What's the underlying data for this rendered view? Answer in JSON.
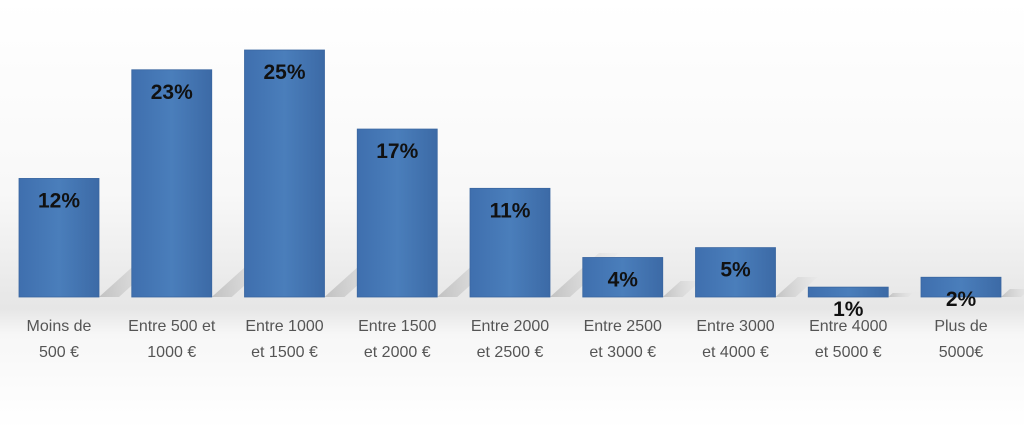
{
  "chart_data": {
    "type": "bar",
    "title": "",
    "xlabel": "",
    "ylabel": "",
    "ylim": [
      0,
      25
    ],
    "grid": false,
    "legend": "none",
    "bar_color": "#4a7ebb",
    "categories": [
      [
        "Moins de",
        "500 €"
      ],
      [
        "Entre 500 et",
        "1000 €"
      ],
      [
        "Entre 1000",
        "et 1500 €"
      ],
      [
        "Entre 1500",
        "et 2000 €"
      ],
      [
        "Entre 2000",
        "et 2500 €"
      ],
      [
        "Entre 2500",
        "et 3000 €"
      ],
      [
        "Entre 3000",
        "et 4000 €"
      ],
      [
        "Entre 4000",
        "et 5000 €"
      ],
      [
        "Plus de",
        "5000€"
      ]
    ],
    "values": [
      12,
      23,
      25,
      17,
      11,
      4,
      5,
      1,
      2
    ],
    "value_labels": [
      "12%",
      "23%",
      "25%",
      "17%",
      "11%",
      "4%",
      "5%",
      "1%",
      "2%"
    ]
  }
}
